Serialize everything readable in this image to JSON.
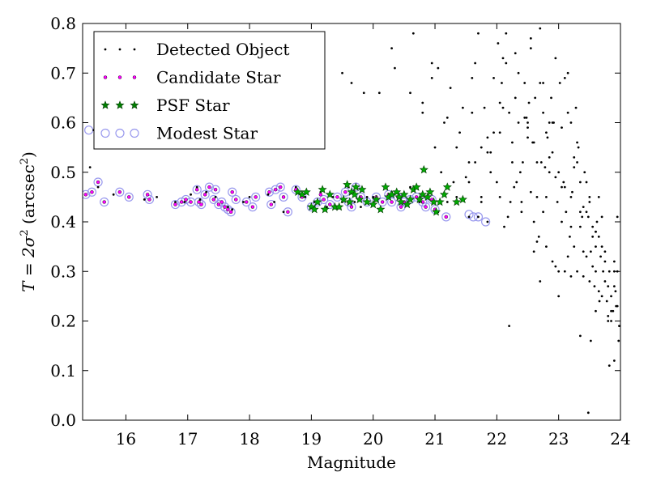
{
  "chart_data": {
    "type": "scatter",
    "title": "",
    "xlabel": "Magnitude",
    "ylabel_main": "T = 2σ",
    "ylabel_sup": "2",
    "ylabel_unit": " (arcsec",
    "ylabel_unit_sup": "2",
    "ylabel_close": ")",
    "xlim": [
      15.3,
      24.0
    ],
    "ylim": [
      0.0,
      0.8
    ],
    "xticks": [
      16,
      17,
      18,
      19,
      20,
      21,
      22,
      23,
      24
    ],
    "yticks": [
      0.0,
      0.1,
      0.2,
      0.3,
      0.4,
      0.5,
      0.6,
      0.7,
      0.8
    ],
    "xtick_labels": [
      "16",
      "17",
      "18",
      "19",
      "20",
      "21",
      "22",
      "23",
      "24"
    ],
    "ytick_labels": [
      "0.0",
      "0.1",
      "0.2",
      "0.3",
      "0.4",
      "0.5",
      "0.6",
      "0.7",
      "0.8"
    ],
    "grid": false,
    "legend_position": "top-left",
    "legend": [
      {
        "label": "Detected Object",
        "marker": "dot",
        "color": "#000000"
      },
      {
        "label": "Candidate Star",
        "marker": "dot",
        "color": "#ff00ff"
      },
      {
        "label": "PSF Star",
        "marker": "star",
        "color": "#008000"
      },
      {
        "label": "Modest Star",
        "marker": "circle",
        "color": "#9999ee"
      }
    ],
    "series": [
      {
        "name": "Detected Object",
        "color": "#000000",
        "x": [
          15.42,
          15.48,
          15.55,
          15.65,
          15.8,
          16.05,
          16.3,
          16.5,
          16.8,
          16.95,
          17.05,
          17.15,
          17.2,
          17.3,
          17.45,
          17.55,
          17.65,
          17.72,
          17.9,
          18.0,
          18.3,
          18.4,
          18.55,
          18.75,
          18.9,
          19.05,
          19.15,
          19.25,
          19.35,
          19.5,
          19.6,
          19.7,
          19.8,
          19.9,
          20.0,
          20.15,
          20.3,
          20.45,
          20.6,
          20.75,
          20.9,
          21.05,
          21.2,
          21.35,
          21.55,
          21.7,
          21.85,
          19.5,
          19.65,
          19.85,
          20.1,
          20.3,
          20.6,
          20.8,
          20.95,
          21.05,
          21.15,
          21.25,
          21.35,
          21.45,
          21.55,
          21.65,
          21.75,
          21.85,
          21.95,
          22.05,
          22.15,
          22.25,
          22.35,
          22.45,
          22.55,
          22.65,
          22.75,
          22.85,
          22.95,
          23.05,
          23.15,
          23.25,
          23.35,
          23.45,
          23.55,
          23.65,
          23.75,
          23.85,
          23.95,
          20.35,
          20.65,
          20.95,
          21.1,
          21.3,
          21.5,
          21.7,
          21.9,
          22.1,
          22.3,
          22.5,
          22.7,
          22.9,
          23.1,
          23.3,
          23.5,
          23.7,
          23.9,
          22.0,
          22.2,
          22.4,
          22.6,
          22.8,
          23.0,
          23.2,
          23.4,
          23.6,
          23.8,
          21.8,
          21.6,
          21.4,
          21.2,
          21.0,
          20.8,
          22.05,
          22.25,
          22.45,
          22.65,
          22.85,
          23.05,
          23.25,
          23.45,
          23.65,
          23.85,
          22.15,
          22.35,
          22.55,
          22.75,
          22.95,
          23.15,
          23.35,
          23.55,
          23.75,
          23.95,
          21.6,
          21.75,
          21.9,
          22.1,
          22.3,
          22.5,
          22.7,
          22.9,
          23.1,
          23.3,
          23.5,
          23.7,
          23.9,
          22.05,
          22.4,
          22.8,
          23.2,
          23.6,
          22.02,
          22.22,
          22.42,
          22.62,
          22.82,
          23.02,
          23.22,
          23.42,
          23.62,
          23.82,
          22.12,
          22.32,
          22.52,
          22.72,
          22.92,
          23.12,
          23.32,
          23.52,
          23.72,
          23.92,
          22.08,
          22.28,
          22.48,
          22.68,
          22.88,
          23.08,
          23.28,
          23.48,
          23.68,
          23.88,
          21.95,
          21.85,
          21.75,
          21.65,
          21.55,
          22.18,
          22.38,
          22.58,
          22.78,
          22.98,
          23.18,
          23.38,
          23.58,
          23.78,
          23.98,
          22.6,
          22.7,
          22.5,
          22.9,
          23.0,
          23.1,
          23.2,
          23.3,
          23.4,
          23.5,
          23.6,
          23.7,
          23.8,
          23.9,
          22.65,
          22.85,
          23.05,
          23.25,
          23.45,
          23.65,
          23.85,
          22.55,
          22.75,
          22.95,
          23.15,
          23.35,
          23.55,
          23.75,
          23.95,
          22.6,
          22.8,
          23.0,
          23.2,
          23.4,
          23.6,
          23.8,
          23.35,
          23.52,
          23.66,
          23.82,
          23.93,
          22.2,
          23.48,
          23.6,
          23.9,
          23.97
        ],
        "y": [
          0.51,
          0.585,
          0.47,
          0.44,
          0.455,
          0.45,
          0.445,
          0.45,
          0.44,
          0.44,
          0.455,
          0.47,
          0.445,
          0.46,
          0.45,
          0.44,
          0.43,
          0.425,
          0.44,
          0.45,
          0.455,
          0.44,
          0.42,
          0.47,
          0.45,
          0.44,
          0.46,
          0.43,
          0.45,
          0.44,
          0.47,
          0.44,
          0.43,
          0.45,
          0.45,
          0.44,
          0.46,
          0.45,
          0.47,
          0.44,
          0.45,
          0.42,
          0.44,
          0.45,
          0.41,
          0.41,
          0.4,
          0.7,
          0.68,
          0.66,
          0.66,
          0.75,
          0.66,
          0.64,
          0.69,
          0.71,
          0.6,
          0.67,
          0.55,
          0.63,
          0.52,
          0.72,
          0.44,
          0.57,
          0.69,
          0.64,
          0.78,
          0.56,
          0.7,
          0.61,
          0.75,
          0.52,
          0.68,
          0.6,
          0.73,
          0.47,
          0.62,
          0.53,
          0.48,
          0.42,
          0.39,
          0.37,
          0.34,
          0.22,
          0.3,
          0.71,
          0.78,
          0.72,
          0.5,
          0.48,
          0.49,
          0.78,
          0.54,
          0.63,
          0.74,
          0.57,
          0.79,
          0.6,
          0.69,
          0.52,
          0.45,
          0.41,
          0.27,
          0.48,
          0.62,
          0.44,
          0.56,
          0.45,
          0.5,
          0.6,
          0.43,
          0.38,
          0.27,
          0.63,
          0.69,
          0.58,
          0.61,
          0.55,
          0.62,
          0.58,
          0.52,
          0.68,
          0.45,
          0.53,
          0.59,
          0.51,
          0.48,
          0.45,
          0.25,
          0.72,
          0.6,
          0.77,
          0.62,
          0.49,
          0.7,
          0.42,
          0.37,
          0.32,
          0.41,
          0.62,
          0.55,
          0.5,
          0.73,
          0.65,
          0.59,
          0.68,
          0.54,
          0.47,
          0.56,
          0.44,
          0.35,
          0.3,
          0.45,
          0.42,
          0.58,
          0.45,
          0.38,
          0.76,
          0.44,
          0.52,
          0.65,
          0.57,
          0.68,
          0.46,
          0.5,
          0.4,
          0.3,
          0.39,
          0.48,
          0.64,
          0.52,
          0.6,
          0.42,
          0.55,
          0.34,
          0.3,
          0.26,
          0.68,
          0.47,
          0.61,
          0.37,
          0.65,
          0.48,
          0.63,
          0.41,
          0.33,
          0.22,
          0.58,
          0.54,
          0.45,
          0.52,
          0.48,
          0.41,
          0.5,
          0.56,
          0.51,
          0.44,
          0.37,
          0.41,
          0.27,
          0.24,
          0.19,
          0.34,
          0.28,
          0.6,
          0.32,
          0.25,
          0.3,
          0.39,
          0.3,
          0.34,
          0.28,
          0.22,
          0.25,
          0.21,
          0.12,
          0.36,
          0.5,
          0.4,
          0.35,
          0.33,
          0.26,
          0.2,
          0.46,
          0.42,
          0.31,
          0.33,
          0.39,
          0.31,
          0.28,
          0.23,
          0.4,
          0.35,
          0.3,
          0.29,
          0.29,
          0.35,
          0.2,
          0.17,
          0.16,
          0.24,
          0.11,
          0.23,
          0.19,
          0.015,
          0.3,
          0.32,
          0.16
        ]
      },
      {
        "name": "Candidate Star",
        "color": "#ff00ff",
        "x": [
          15.35,
          15.45,
          15.55,
          15.65,
          15.9,
          16.05,
          16.35,
          16.38,
          16.8,
          16.9,
          16.97,
          17.05,
          17.15,
          17.18,
          17.22,
          17.28,
          17.35,
          17.42,
          17.45,
          17.5,
          17.55,
          17.6,
          17.65,
          17.7,
          17.72,
          17.78,
          17.95,
          18.05,
          18.1,
          18.32,
          18.35,
          18.42,
          18.5,
          18.55,
          18.62,
          18.75,
          18.85,
          19.0,
          19.1,
          19.15,
          19.2,
          19.3,
          19.42,
          19.55,
          19.6,
          19.65,
          19.72,
          19.8,
          19.9,
          20.05,
          20.15,
          20.25,
          20.3,
          20.4,
          20.45,
          20.5,
          20.6,
          20.7,
          20.8,
          20.85,
          20.95,
          21.0,
          21.18
        ],
        "y": [
          0.455,
          0.46,
          0.48,
          0.44,
          0.46,
          0.45,
          0.455,
          0.445,
          0.435,
          0.44,
          0.445,
          0.44,
          0.465,
          0.44,
          0.435,
          0.455,
          0.47,
          0.445,
          0.465,
          0.435,
          0.44,
          0.43,
          0.425,
          0.42,
          0.46,
          0.445,
          0.44,
          0.43,
          0.45,
          0.46,
          0.435,
          0.465,
          0.47,
          0.45,
          0.42,
          0.465,
          0.45,
          0.43,
          0.44,
          0.455,
          0.445,
          0.435,
          0.45,
          0.46,
          0.44,
          0.43,
          0.47,
          0.45,
          0.44,
          0.45,
          0.44,
          0.455,
          0.44,
          0.45,
          0.43,
          0.44,
          0.445,
          0.45,
          0.44,
          0.43,
          0.445,
          0.425,
          0.41
        ]
      },
      {
        "name": "PSF Star",
        "color": "#00aa00",
        "x": [
          18.78,
          18.85,
          18.92,
          19.0,
          19.05,
          19.1,
          19.18,
          19.22,
          19.3,
          19.38,
          19.45,
          19.52,
          19.58,
          19.62,
          19.65,
          19.7,
          19.72,
          19.78,
          19.82,
          19.9,
          20.0,
          20.05,
          20.12,
          20.2,
          20.25,
          20.3,
          20.38,
          20.42,
          20.45,
          20.5,
          20.55,
          20.6,
          20.65,
          20.7,
          20.75,
          20.8,
          20.82,
          20.88,
          20.92,
          20.98,
          21.02,
          21.08,
          21.15,
          21.2,
          21.35,
          21.45
        ],
        "y": [
          0.46,
          0.455,
          0.46,
          0.43,
          0.425,
          0.44,
          0.465,
          0.425,
          0.455,
          0.43,
          0.43,
          0.445,
          0.475,
          0.44,
          0.46,
          0.455,
          0.47,
          0.445,
          0.465,
          0.44,
          0.435,
          0.445,
          0.425,
          0.47,
          0.45,
          0.455,
          0.46,
          0.45,
          0.44,
          0.455,
          0.435,
          0.445,
          0.465,
          0.47,
          0.445,
          0.455,
          0.505,
          0.45,
          0.46,
          0.44,
          0.42,
          0.44,
          0.455,
          0.47,
          0.44,
          0.445
        ]
      },
      {
        "name": "Modest Star",
        "color": "#9999ee",
        "x": [
          15.35,
          15.4,
          15.45,
          15.55,
          15.65,
          15.9,
          16.05,
          16.35,
          16.38,
          16.8,
          16.9,
          16.97,
          17.05,
          17.15,
          17.18,
          17.22,
          17.28,
          17.35,
          17.42,
          17.45,
          17.5,
          17.55,
          17.6,
          17.65,
          17.7,
          17.72,
          17.78,
          17.95,
          18.05,
          18.1,
          18.32,
          18.35,
          18.42,
          18.5,
          18.55,
          18.62,
          18.75,
          18.85,
          19.0,
          19.1,
          19.2,
          19.3,
          19.42,
          19.55,
          19.6,
          19.65,
          19.72,
          19.8,
          19.9,
          20.05,
          20.15,
          20.25,
          20.3,
          20.4,
          20.45,
          20.5,
          20.6,
          20.7,
          20.8,
          20.85,
          20.95,
          21.0,
          21.18,
          21.55,
          21.62,
          21.7,
          21.82
        ],
        "y": [
          0.455,
          0.585,
          0.46,
          0.48,
          0.44,
          0.46,
          0.45,
          0.455,
          0.445,
          0.435,
          0.44,
          0.445,
          0.44,
          0.465,
          0.44,
          0.435,
          0.455,
          0.47,
          0.445,
          0.465,
          0.435,
          0.44,
          0.43,
          0.425,
          0.42,
          0.46,
          0.445,
          0.44,
          0.43,
          0.45,
          0.46,
          0.435,
          0.465,
          0.47,
          0.45,
          0.42,
          0.465,
          0.45,
          0.43,
          0.44,
          0.445,
          0.435,
          0.45,
          0.46,
          0.44,
          0.43,
          0.47,
          0.45,
          0.44,
          0.45,
          0.44,
          0.455,
          0.44,
          0.45,
          0.43,
          0.44,
          0.445,
          0.45,
          0.44,
          0.43,
          0.445,
          0.425,
          0.41,
          0.415,
          0.41,
          0.41,
          0.4
        ]
      }
    ]
  }
}
